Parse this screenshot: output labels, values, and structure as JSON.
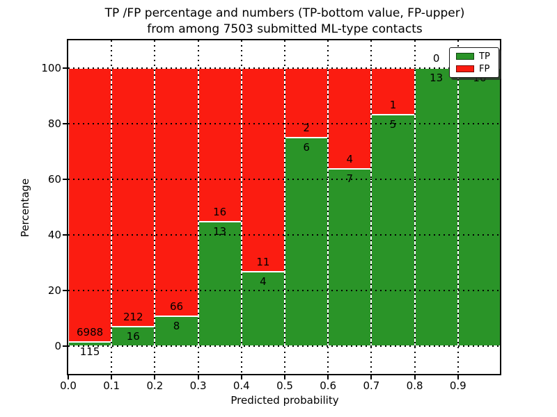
{
  "figure": {
    "title_line1": "TP /FP percentage and numbers (TP-bottom value, FP-upper)",
    "title_line2": "from among 7503 submitted ML-type contacts",
    "xlabel": "Predicted probability",
    "ylabel": "Percentage"
  },
  "legend": {
    "position": "upper right",
    "items": [
      {
        "label": "TP",
        "color": "#2a9428"
      },
      {
        "label": "FP",
        "color": "#fb1c11"
      }
    ]
  },
  "chart_data": {
    "type": "bar",
    "stacked": true,
    "normalized_to_percent": true,
    "title": "TP /FP percentage and numbers (TP-bottom value, FP-upper) from among 7503 submitted ML-type contacts",
    "xlabel": "Predicted probability",
    "ylabel": "Percentage",
    "total_contacts": 7503,
    "bin_width": 0.1,
    "bin_starts": [
      0.0,
      0.1,
      0.2,
      0.3,
      0.4,
      0.5,
      0.6,
      0.7,
      0.8,
      0.9
    ],
    "series": [
      {
        "name": "TP",
        "color": "#2a9428",
        "counts": [
          115,
          16,
          8,
          13,
          4,
          6,
          7,
          5,
          13,
          16
        ]
      },
      {
        "name": "FP",
        "color": "#fb1c11",
        "counts": [
          6988,
          212,
          66,
          16,
          11,
          2,
          4,
          1,
          0,
          0
        ]
      }
    ],
    "tp_percent": [
      1.62,
      7.02,
      10.81,
      44.83,
      26.67,
      75.0,
      63.64,
      83.33,
      100.0,
      100.0
    ],
    "x_tick_labels": [
      "0.0",
      "0.1",
      "0.2",
      "0.3",
      "0.4",
      "0.5",
      "0.6",
      "0.7",
      "0.8",
      "0.9"
    ],
    "y_ticks": [
      0,
      20,
      40,
      60,
      80,
      100
    ],
    "xlim": [
      0.0,
      1.0
    ],
    "ylim": [
      -10,
      110
    ],
    "grid": true,
    "grid_style": "dotted",
    "bar_edge_color": "#ffffff",
    "note_last_bin_fp_label_hidden_behind_legend": true
  }
}
